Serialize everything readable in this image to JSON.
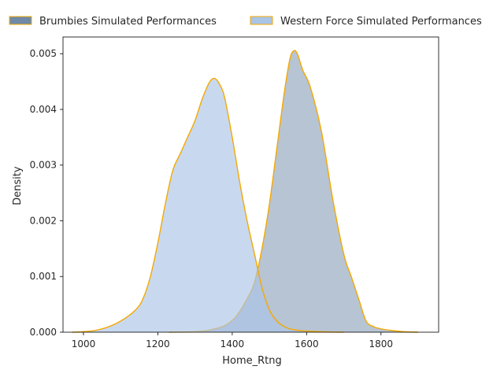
{
  "chart_data": {
    "type": "area",
    "title": "",
    "xlabel": "Home_Rtng",
    "ylabel": "Density",
    "xlim": [
      945,
      1955
    ],
    "ylim": [
      0,
      0.0053
    ],
    "x_ticks": [
      1000,
      1200,
      1400,
      1600,
      1800
    ],
    "x_tick_labels": [
      "1000",
      "1200",
      "1400",
      "1600",
      "1800"
    ],
    "y_ticks": [
      0,
      0.001,
      0.002,
      0.003,
      0.004,
      0.005
    ],
    "y_tick_labels": [
      "0.000",
      "0.001",
      "0.002",
      "0.003",
      "0.004",
      "0.005"
    ],
    "grid": false,
    "legend_position": "top, above plot",
    "outline_color": "#f5a800",
    "series": [
      {
        "name": "Brumbies Simulated Performances",
        "fill_color": "#6f8aa8",
        "x": [
          1230,
          1300,
          1340,
          1380,
          1410,
          1440,
          1460,
          1480,
          1500,
          1520,
          1540,
          1555,
          1565,
          1575,
          1590,
          1610,
          1640,
          1670,
          1700,
          1720,
          1740,
          1760,
          1780,
          1800,
          1830,
          1860,
          1900
        ],
        "values": [
          0,
          1e-05,
          4e-05,
          0.00012,
          0.00028,
          0.0006,
          0.0009,
          0.0015,
          0.0023,
          0.0033,
          0.0043,
          0.0049,
          0.00505,
          0.005,
          0.0047,
          0.0044,
          0.0036,
          0.0024,
          0.0014,
          0.001,
          0.0006,
          0.0002,
          0.0001,
          6e-05,
          3e-05,
          1e-05,
          0
        ]
      },
      {
        "name": "Western Force Simulated Performances",
        "fill_color": "#aac4e6",
        "x": [
          970,
          1020,
          1060,
          1100,
          1140,
          1160,
          1180,
          1200,
          1220,
          1240,
          1260,
          1280,
          1300,
          1320,
          1340,
          1355,
          1370,
          1380,
          1400,
          1420,
          1440,
          1460,
          1480,
          1500,
          1520,
          1540,
          1560,
          1600,
          1660,
          1700
        ],
        "values": [
          0,
          2e-05,
          8e-05,
          0.0002,
          0.0004,
          0.0006,
          0.001,
          0.0016,
          0.0023,
          0.0029,
          0.0032,
          0.0035,
          0.0038,
          0.0042,
          0.0045,
          0.00455,
          0.0044,
          0.0042,
          0.0035,
          0.0027,
          0.002,
          0.0014,
          0.0008,
          0.0004,
          0.0002,
          0.0001,
          5e-05,
          2e-05,
          5e-06,
          0
        ]
      }
    ]
  }
}
